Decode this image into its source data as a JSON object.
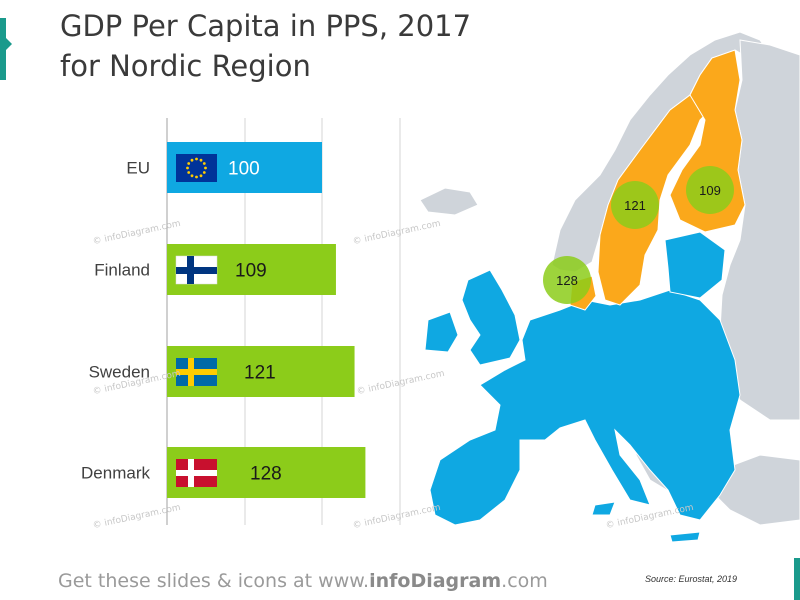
{
  "title_line1": "GDP Per Capita in PPS, 2017",
  "title_line2": "for Nordic Region",
  "footer": {
    "prefix": "Get these slides & icons at www.",
    "brand": "infoDiagram",
    "suffix": ".com"
  },
  "source": "Source: Eurostat, 2019",
  "watermark": "© infoDiagram.com",
  "colors": {
    "eu_bar": "#0fa8e2",
    "nordic_bar": "#8ccc1a",
    "europe_eu": "#0fa8e2",
    "europe_nonEU": "#cfd4da",
    "nordic_map": "#fba81b",
    "bubble": "#8ccc1a",
    "accent": "#1a9a8c"
  },
  "chart_data": {
    "type": "bar",
    "orientation": "horizontal",
    "categories": [
      "EU",
      "Finland",
      "Sweden",
      "Denmark"
    ],
    "values": [
      100,
      109,
      121,
      128
    ],
    "flags": [
      "eu-flag",
      "finland-flag",
      "sweden-flag",
      "denmark-flag"
    ],
    "grid": true,
    "map_bubbles": [
      {
        "country": "Finland",
        "value": 109
      },
      {
        "country": "Sweden",
        "value": 121
      },
      {
        "country": "Denmark",
        "value": 128
      }
    ]
  }
}
